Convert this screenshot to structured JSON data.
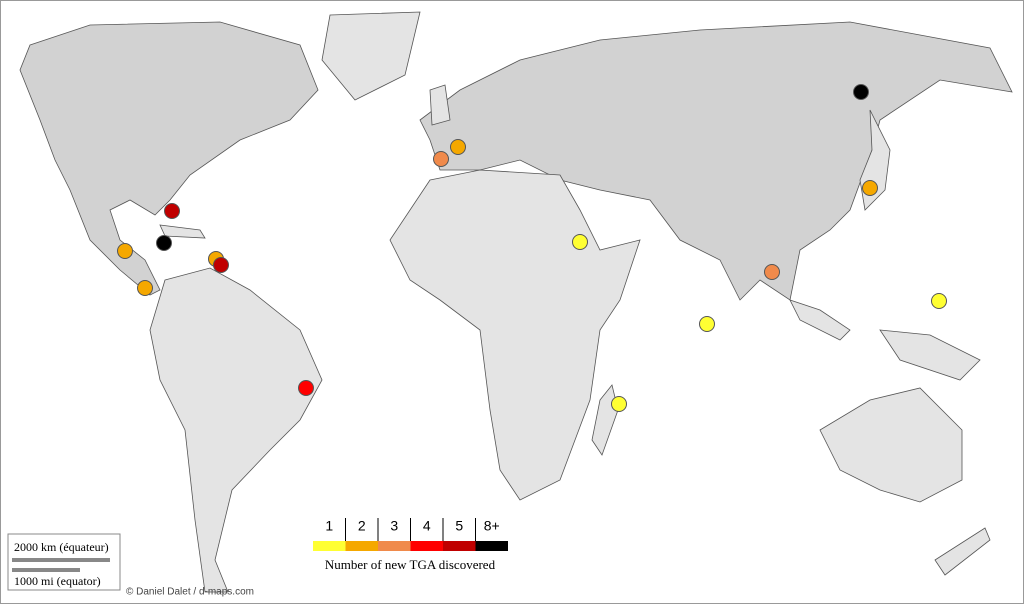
{
  "chart_data": {
    "type": "map",
    "legend_title": "Number of new TGA discovered",
    "legend_ticks": [
      1,
      2,
      3,
      4,
      5,
      {
        "value": 8,
        "label": "8+"
      }
    ],
    "legend_colors": [
      "#ffff33",
      "#f5a800",
      "#f08a4b",
      "#ff0000",
      "#c00000",
      "#000000"
    ],
    "values": [
      8,
      2,
      2,
      3,
      5,
      8,
      2,
      2,
      5,
      2,
      4,
      1,
      3,
      1,
      1,
      1
    ],
    "scale_km": "2000 km (équateur)",
    "scale_mi": "1000 mi (equator)",
    "credit": "© Daniel Dalet / d-maps.com"
  }
}
